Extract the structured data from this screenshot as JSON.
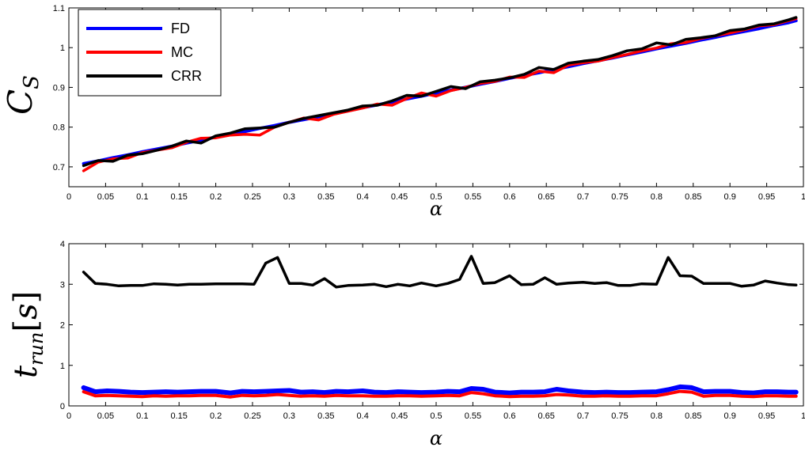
{
  "chart_data": [
    {
      "type": "line",
      "xlabel": "α",
      "ylabel": {
        "main": "C",
        "sub": "S"
      },
      "xlim": [
        0,
        1
      ],
      "ylim": [
        0.65,
        1.1
      ],
      "xticks": [
        "0",
        "0.05",
        "0.1",
        "0.15",
        "0.2",
        "0.25",
        "0.3",
        "0.35",
        "0.4",
        "0.45",
        "0.5",
        "0.55",
        "0.6",
        "0.65",
        "0.7",
        "0.75",
        "0.8",
        "0.85",
        "0.9",
        "0.95",
        "1"
      ],
      "yticks": [
        "0.7",
        "0.8",
        "0.9",
        "1",
        "1.1"
      ],
      "legend_position": "top-left",
      "x": [
        0.02,
        0.04,
        0.06,
        0.08,
        0.1,
        0.12,
        0.14,
        0.16,
        0.18,
        0.2,
        0.22,
        0.24,
        0.26,
        0.28,
        0.3,
        0.32,
        0.34,
        0.36,
        0.38,
        0.4,
        0.42,
        0.44,
        0.46,
        0.48,
        0.5,
        0.52,
        0.54,
        0.56,
        0.58,
        0.6,
        0.62,
        0.64,
        0.66,
        0.68,
        0.7,
        0.72,
        0.74,
        0.76,
        0.78,
        0.8,
        0.82,
        0.84,
        0.86,
        0.88,
        0.9,
        0.92,
        0.94,
        0.96,
        0.98,
        0.99
      ],
      "series": [
        {
          "name": "FD",
          "color": "#0000ff",
          "values": [
            0.708,
            0.715,
            0.723,
            0.73,
            0.738,
            0.745,
            0.752,
            0.76,
            0.767,
            0.775,
            0.782,
            0.789,
            0.797,
            0.804,
            0.812,
            0.819,
            0.826,
            0.834,
            0.841,
            0.849,
            0.856,
            0.863,
            0.871,
            0.878,
            0.886,
            0.893,
            0.9,
            0.908,
            0.915,
            0.923,
            0.93,
            0.937,
            0.945,
            0.952,
            0.96,
            0.967,
            0.974,
            0.982,
            0.989,
            0.997,
            1.004,
            1.011,
            1.019,
            1.026,
            1.034,
            1.041,
            1.048,
            1.056,
            1.063,
            1.068
          ]
        },
        {
          "name": "MC",
          "color": "#ff0000",
          "values": [
            0.69,
            0.712,
            0.72,
            0.722,
            0.736,
            0.742,
            0.748,
            0.762,
            0.772,
            0.773,
            0.78,
            0.782,
            0.78,
            0.8,
            0.812,
            0.823,
            0.818,
            0.832,
            0.84,
            0.848,
            0.858,
            0.855,
            0.872,
            0.886,
            0.878,
            0.892,
            0.9,
            0.91,
            0.915,
            0.926,
            0.925,
            0.941,
            0.937,
            0.956,
            0.962,
            0.966,
            0.975,
            0.983,
            0.992,
            0.999,
            1.01,
            1.013,
            1.023,
            1.03,
            1.037,
            1.045,
            1.055,
            1.058,
            1.068,
            1.073
          ]
        },
        {
          "name": "CRR",
          "color": "#000000",
          "values": [
            0.703,
            0.716,
            0.714,
            0.729,
            0.733,
            0.742,
            0.752,
            0.765,
            0.76,
            0.778,
            0.785,
            0.796,
            0.798,
            0.8,
            0.812,
            0.822,
            0.829,
            0.836,
            0.843,
            0.853,
            0.855,
            0.866,
            0.88,
            0.878,
            0.89,
            0.902,
            0.897,
            0.914,
            0.918,
            0.924,
            0.933,
            0.95,
            0.945,
            0.961,
            0.966,
            0.97,
            0.98,
            0.992,
            0.997,
            1.012,
            1.007,
            1.021,
            1.025,
            1.03,
            1.043,
            1.047,
            1.057,
            1.06,
            1.07,
            1.076
          ]
        }
      ]
    },
    {
      "type": "line",
      "xlabel": "α",
      "ylabel": {
        "main": "t",
        "sub": "run",
        "bracket_text": "s"
      },
      "xlim": [
        0,
        1
      ],
      "ylim": [
        0,
        4
      ],
      "xticks": [
        "0",
        "0.05",
        "0.1",
        "0.15",
        "0.2",
        "0.25",
        "0.3",
        "0.35",
        "0.4",
        "0.45",
        "0.5",
        "0.55",
        "0.6",
        "0.65",
        "0.7",
        "0.75",
        "0.8",
        "0.85",
        "0.9",
        "0.95",
        "1"
      ],
      "yticks": [
        "0",
        "1",
        "2",
        "3",
        "4"
      ],
      "x": [
        0.02,
        0.036,
        0.052,
        0.068,
        0.084,
        0.1,
        0.116,
        0.132,
        0.148,
        0.164,
        0.18,
        0.2,
        0.22,
        0.236,
        0.252,
        0.268,
        0.284,
        0.3,
        0.316,
        0.332,
        0.348,
        0.364,
        0.38,
        0.4,
        0.416,
        0.432,
        0.448,
        0.464,
        0.48,
        0.5,
        0.516,
        0.532,
        0.548,
        0.564,
        0.58,
        0.6,
        0.616,
        0.632,
        0.648,
        0.664,
        0.68,
        0.7,
        0.716,
        0.732,
        0.748,
        0.764,
        0.78,
        0.8,
        0.816,
        0.832,
        0.848,
        0.864,
        0.88,
        0.9,
        0.916,
        0.932,
        0.948,
        0.964,
        0.98,
        0.99
      ],
      "series": [
        {
          "name": "FD",
          "color": "#0000ff",
          "values": [
            0.45,
            0.35,
            0.37,
            0.36,
            0.34,
            0.33,
            0.34,
            0.35,
            0.34,
            0.35,
            0.36,
            0.36,
            0.32,
            0.36,
            0.35,
            0.36,
            0.37,
            0.38,
            0.34,
            0.35,
            0.33,
            0.36,
            0.35,
            0.37,
            0.34,
            0.33,
            0.35,
            0.34,
            0.33,
            0.34,
            0.36,
            0.35,
            0.43,
            0.41,
            0.34,
            0.32,
            0.34,
            0.34,
            0.35,
            0.41,
            0.37,
            0.34,
            0.33,
            0.34,
            0.33,
            0.33,
            0.34,
            0.35,
            0.4,
            0.47,
            0.45,
            0.35,
            0.36,
            0.36,
            0.33,
            0.32,
            0.35,
            0.35,
            0.34,
            0.34
          ]
        },
        {
          "name": "MC",
          "color": "#ff0000",
          "values": [
            0.35,
            0.25,
            0.26,
            0.25,
            0.24,
            0.23,
            0.25,
            0.24,
            0.25,
            0.25,
            0.26,
            0.26,
            0.22,
            0.26,
            0.25,
            0.26,
            0.28,
            0.26,
            0.24,
            0.25,
            0.24,
            0.26,
            0.25,
            0.25,
            0.24,
            0.24,
            0.25,
            0.25,
            0.24,
            0.25,
            0.26,
            0.25,
            0.33,
            0.3,
            0.25,
            0.23,
            0.24,
            0.24,
            0.25,
            0.28,
            0.27,
            0.24,
            0.24,
            0.25,
            0.24,
            0.24,
            0.25,
            0.25,
            0.3,
            0.36,
            0.34,
            0.24,
            0.26,
            0.26,
            0.24,
            0.23,
            0.25,
            0.25,
            0.24,
            0.24
          ]
        },
        {
          "name": "CRR",
          "color": "#000000",
          "values": [
            3.3,
            3.02,
            3.0,
            2.96,
            2.97,
            2.97,
            3.01,
            3.0,
            2.98,
            3.0,
            3.0,
            3.01,
            3.01,
            3.01,
            3.0,
            3.52,
            3.66,
            3.02,
            3.02,
            2.98,
            3.14,
            2.93,
            2.97,
            2.98,
            3.0,
            2.94,
            3.0,
            2.96,
            3.03,
            2.96,
            3.02,
            3.12,
            3.69,
            3.02,
            3.04,
            3.21,
            2.99,
            3.0,
            3.16,
            3.0,
            3.03,
            3.05,
            3.02,
            3.04,
            2.97,
            2.97,
            3.01,
            3.0,
            3.66,
            3.21,
            3.2,
            3.02,
            3.02,
            3.02,
            2.95,
            2.98,
            3.08,
            3.03,
            2.99,
            2.98
          ]
        }
      ]
    }
  ]
}
